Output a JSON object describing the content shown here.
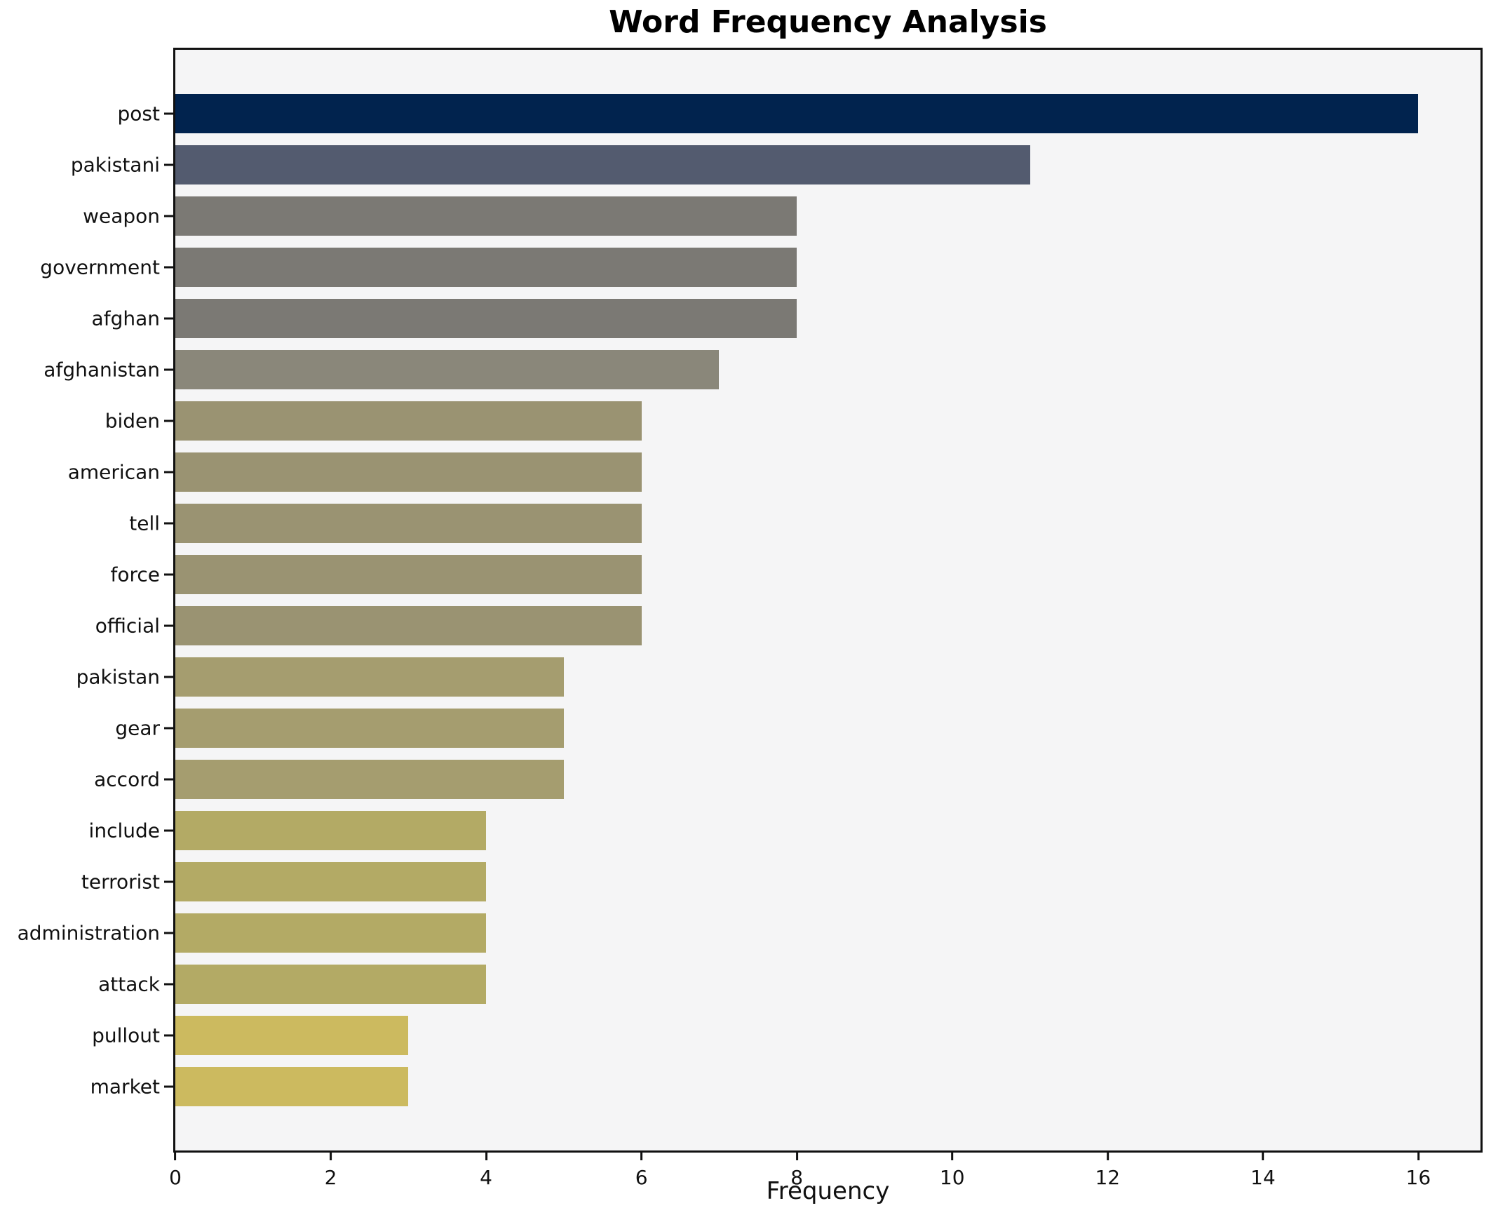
{
  "chart_data": {
    "type": "bar",
    "orientation": "horizontal",
    "title": "Word Frequency Analysis",
    "xlabel": "Frequency",
    "ylabel": "",
    "categories": [
      "post",
      "pakistani",
      "weapon",
      "government",
      "afghan",
      "afghanistan",
      "biden",
      "american",
      "tell",
      "force",
      "official",
      "pakistan",
      "gear",
      "accord",
      "include",
      "terrorist",
      "administration",
      "attack",
      "pullout",
      "market"
    ],
    "values": [
      16,
      11,
      8,
      8,
      8,
      7,
      6,
      6,
      6,
      6,
      6,
      5,
      5,
      5,
      4,
      4,
      4,
      4,
      3,
      3
    ],
    "bar_colors": [
      "#01234e",
      "#535b6f",
      "#7b7974",
      "#7b7974",
      "#7b7974",
      "#8a877a",
      "#9a9372",
      "#9a9372",
      "#9a9372",
      "#9a9372",
      "#9a9372",
      "#a59d6f",
      "#a59d6f",
      "#a59d6f",
      "#b3aa65",
      "#b3aa65",
      "#b3aa65",
      "#b3aa65",
      "#ccba5f",
      "#ccba5f"
    ],
    "xticks": [
      0,
      2,
      4,
      6,
      8,
      10,
      12,
      14,
      16
    ],
    "xlim": [
      0,
      16.8
    ],
    "grid": false,
    "legend_position": "none",
    "plot_background": "#f5f5f6",
    "figure_background": "#ffffff",
    "spine_color": "#111111"
  }
}
